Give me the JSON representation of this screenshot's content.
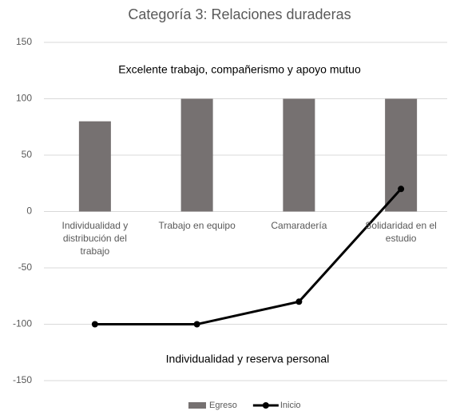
{
  "chart_data": {
    "type": "combo",
    "title": "Categoría 3: Relaciones duraderas",
    "categories": [
      "Individualidad y distribución del trabajo",
      "Trabajo en equipo",
      "Camaradería",
      "Solidaridad en el estudio"
    ],
    "series": [
      {
        "name": "Egreso",
        "type": "bar",
        "color": "#767171",
        "values": [
          80,
          100,
          100,
          100
        ]
      },
      {
        "name": "Inicio",
        "type": "line",
        "color": "#000000",
        "values": [
          -100,
          -100,
          -80,
          20
        ]
      }
    ],
    "ylim": [
      -150,
      150
    ],
    "yticks": [
      -150,
      -100,
      -50,
      0,
      50,
      100,
      150
    ],
    "grid": true,
    "annotations": [
      "Excelente trabajo, compañerismo  y apoyo mutuo",
      "Individualidad y reserva personal"
    ],
    "legend": "bottom"
  }
}
